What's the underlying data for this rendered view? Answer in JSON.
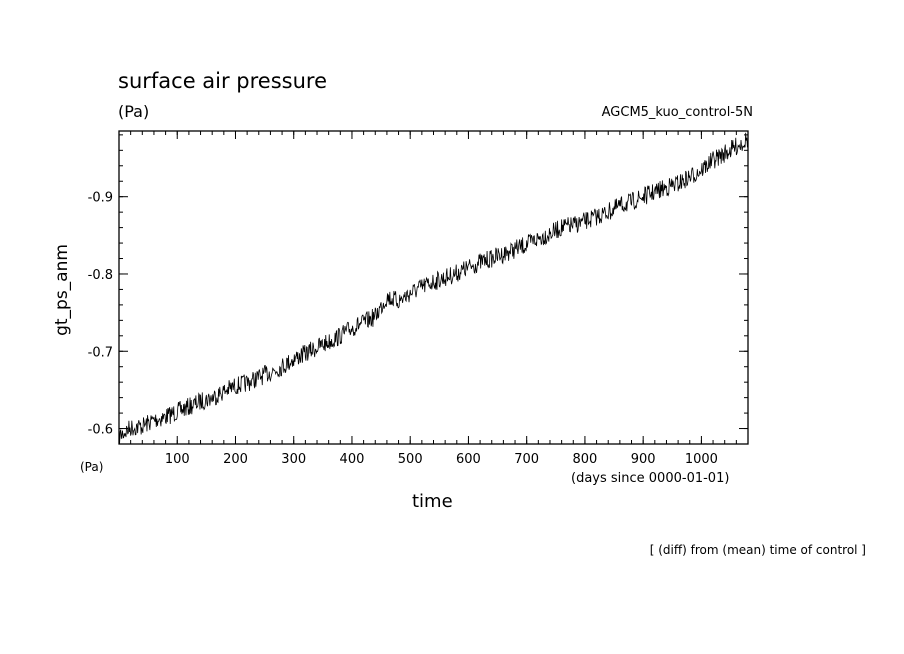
{
  "title": "surface air pressure",
  "unit_top": "(Pa)",
  "run_label": "AGCM5_kuo_control-5N",
  "y_unit": "(Pa)",
  "x_unit": "(days since 0000-01-01)",
  "x_label": "time",
  "y_label": "gt_ps_anm",
  "note": "[ (diff) from (mean) time of control ]",
  "chart_data": {
    "type": "line",
    "xlabel": "time",
    "ylabel": "gt_ps_anm",
    "xlim": [
      0,
      1080
    ],
    "ylim": [
      -0.58,
      -0.985
    ],
    "x_ticks": [
      100,
      200,
      300,
      400,
      500,
      600,
      700,
      800,
      900,
      1000
    ],
    "x_tick_labels": [
      "100",
      "200",
      "300",
      "400",
      "500",
      "600",
      "700",
      "800",
      "900",
      "1000"
    ],
    "y_ticks": [
      -0.6,
      -0.7,
      -0.8,
      -0.9
    ],
    "y_tick_labels": [
      "-0.6",
      "-0.7",
      "-0.8",
      "-0.9"
    ],
    "grid": false,
    "series": [
      {
        "x": [
          0,
          20,
          40,
          60,
          80,
          100,
          120,
          140,
          160,
          180,
          200,
          220,
          240,
          260,
          280,
          300,
          320,
          340,
          360,
          380,
          400,
          420,
          440,
          460,
          480,
          500,
          520,
          540,
          560,
          580,
          600,
          620,
          640,
          660,
          680,
          700,
          720,
          740,
          760,
          780,
          800,
          820,
          840,
          860,
          880,
          900,
          920,
          940,
          960,
          980,
          1000,
          1020,
          1040,
          1060,
          1080
        ],
        "values": [
          -0.59,
          -0.601,
          -0.603,
          -0.611,
          -0.615,
          -0.622,
          -0.628,
          -0.635,
          -0.64,
          -0.648,
          -0.655,
          -0.659,
          -0.666,
          -0.673,
          -0.68,
          -0.69,
          -0.697,
          -0.705,
          -0.712,
          -0.72,
          -0.73,
          -0.737,
          -0.745,
          -0.77,
          -0.765,
          -0.775,
          -0.783,
          -0.79,
          -0.795,
          -0.801,
          -0.808,
          -0.815,
          -0.82,
          -0.826,
          -0.832,
          -0.838,
          -0.846,
          -0.852,
          -0.86,
          -0.863,
          -0.868,
          -0.874,
          -0.88,
          -0.888,
          -0.893,
          -0.9,
          -0.906,
          -0.912,
          -0.917,
          -0.925,
          -0.935,
          -0.947,
          -0.956,
          -0.965,
          -0.975
        ]
      }
    ]
  }
}
